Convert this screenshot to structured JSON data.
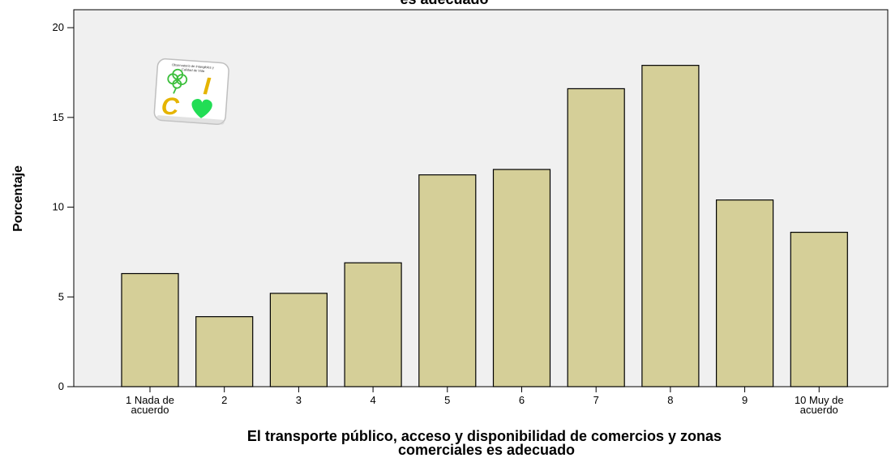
{
  "chart_data": {
    "type": "bar",
    "title": "es adecuado",
    "xlabel_lines": [
      "El transporte público, acceso y disponibilidad de comercios y zonas",
      "comerciales es adecuado"
    ],
    "ylabel": "Porcentaje",
    "categories": [
      [
        "1 Nada de",
        "acuerdo"
      ],
      [
        "2"
      ],
      [
        "3"
      ],
      [
        "4"
      ],
      [
        "5"
      ],
      [
        "6"
      ],
      [
        "7"
      ],
      [
        "8"
      ],
      [
        "9"
      ],
      [
        "10 Muy de",
        "acuerdo"
      ]
    ],
    "values": [
      6.3,
      3.9,
      5.2,
      6.9,
      11.8,
      12.1,
      16.6,
      17.9,
      10.4,
      8.6
    ],
    "ylim": [
      0,
      21
    ],
    "yticks": [
      0,
      5,
      10,
      15,
      20
    ],
    "grid": false,
    "colors": {
      "bar_fill": "#d5cf98",
      "bar_stroke": "#000000",
      "plot_bg": "#f0f0f0"
    }
  },
  "logo": {
    "small_text": "Observatorio de Intangibles y Calidad de Vida",
    "letters": [
      "I",
      "C"
    ]
  }
}
